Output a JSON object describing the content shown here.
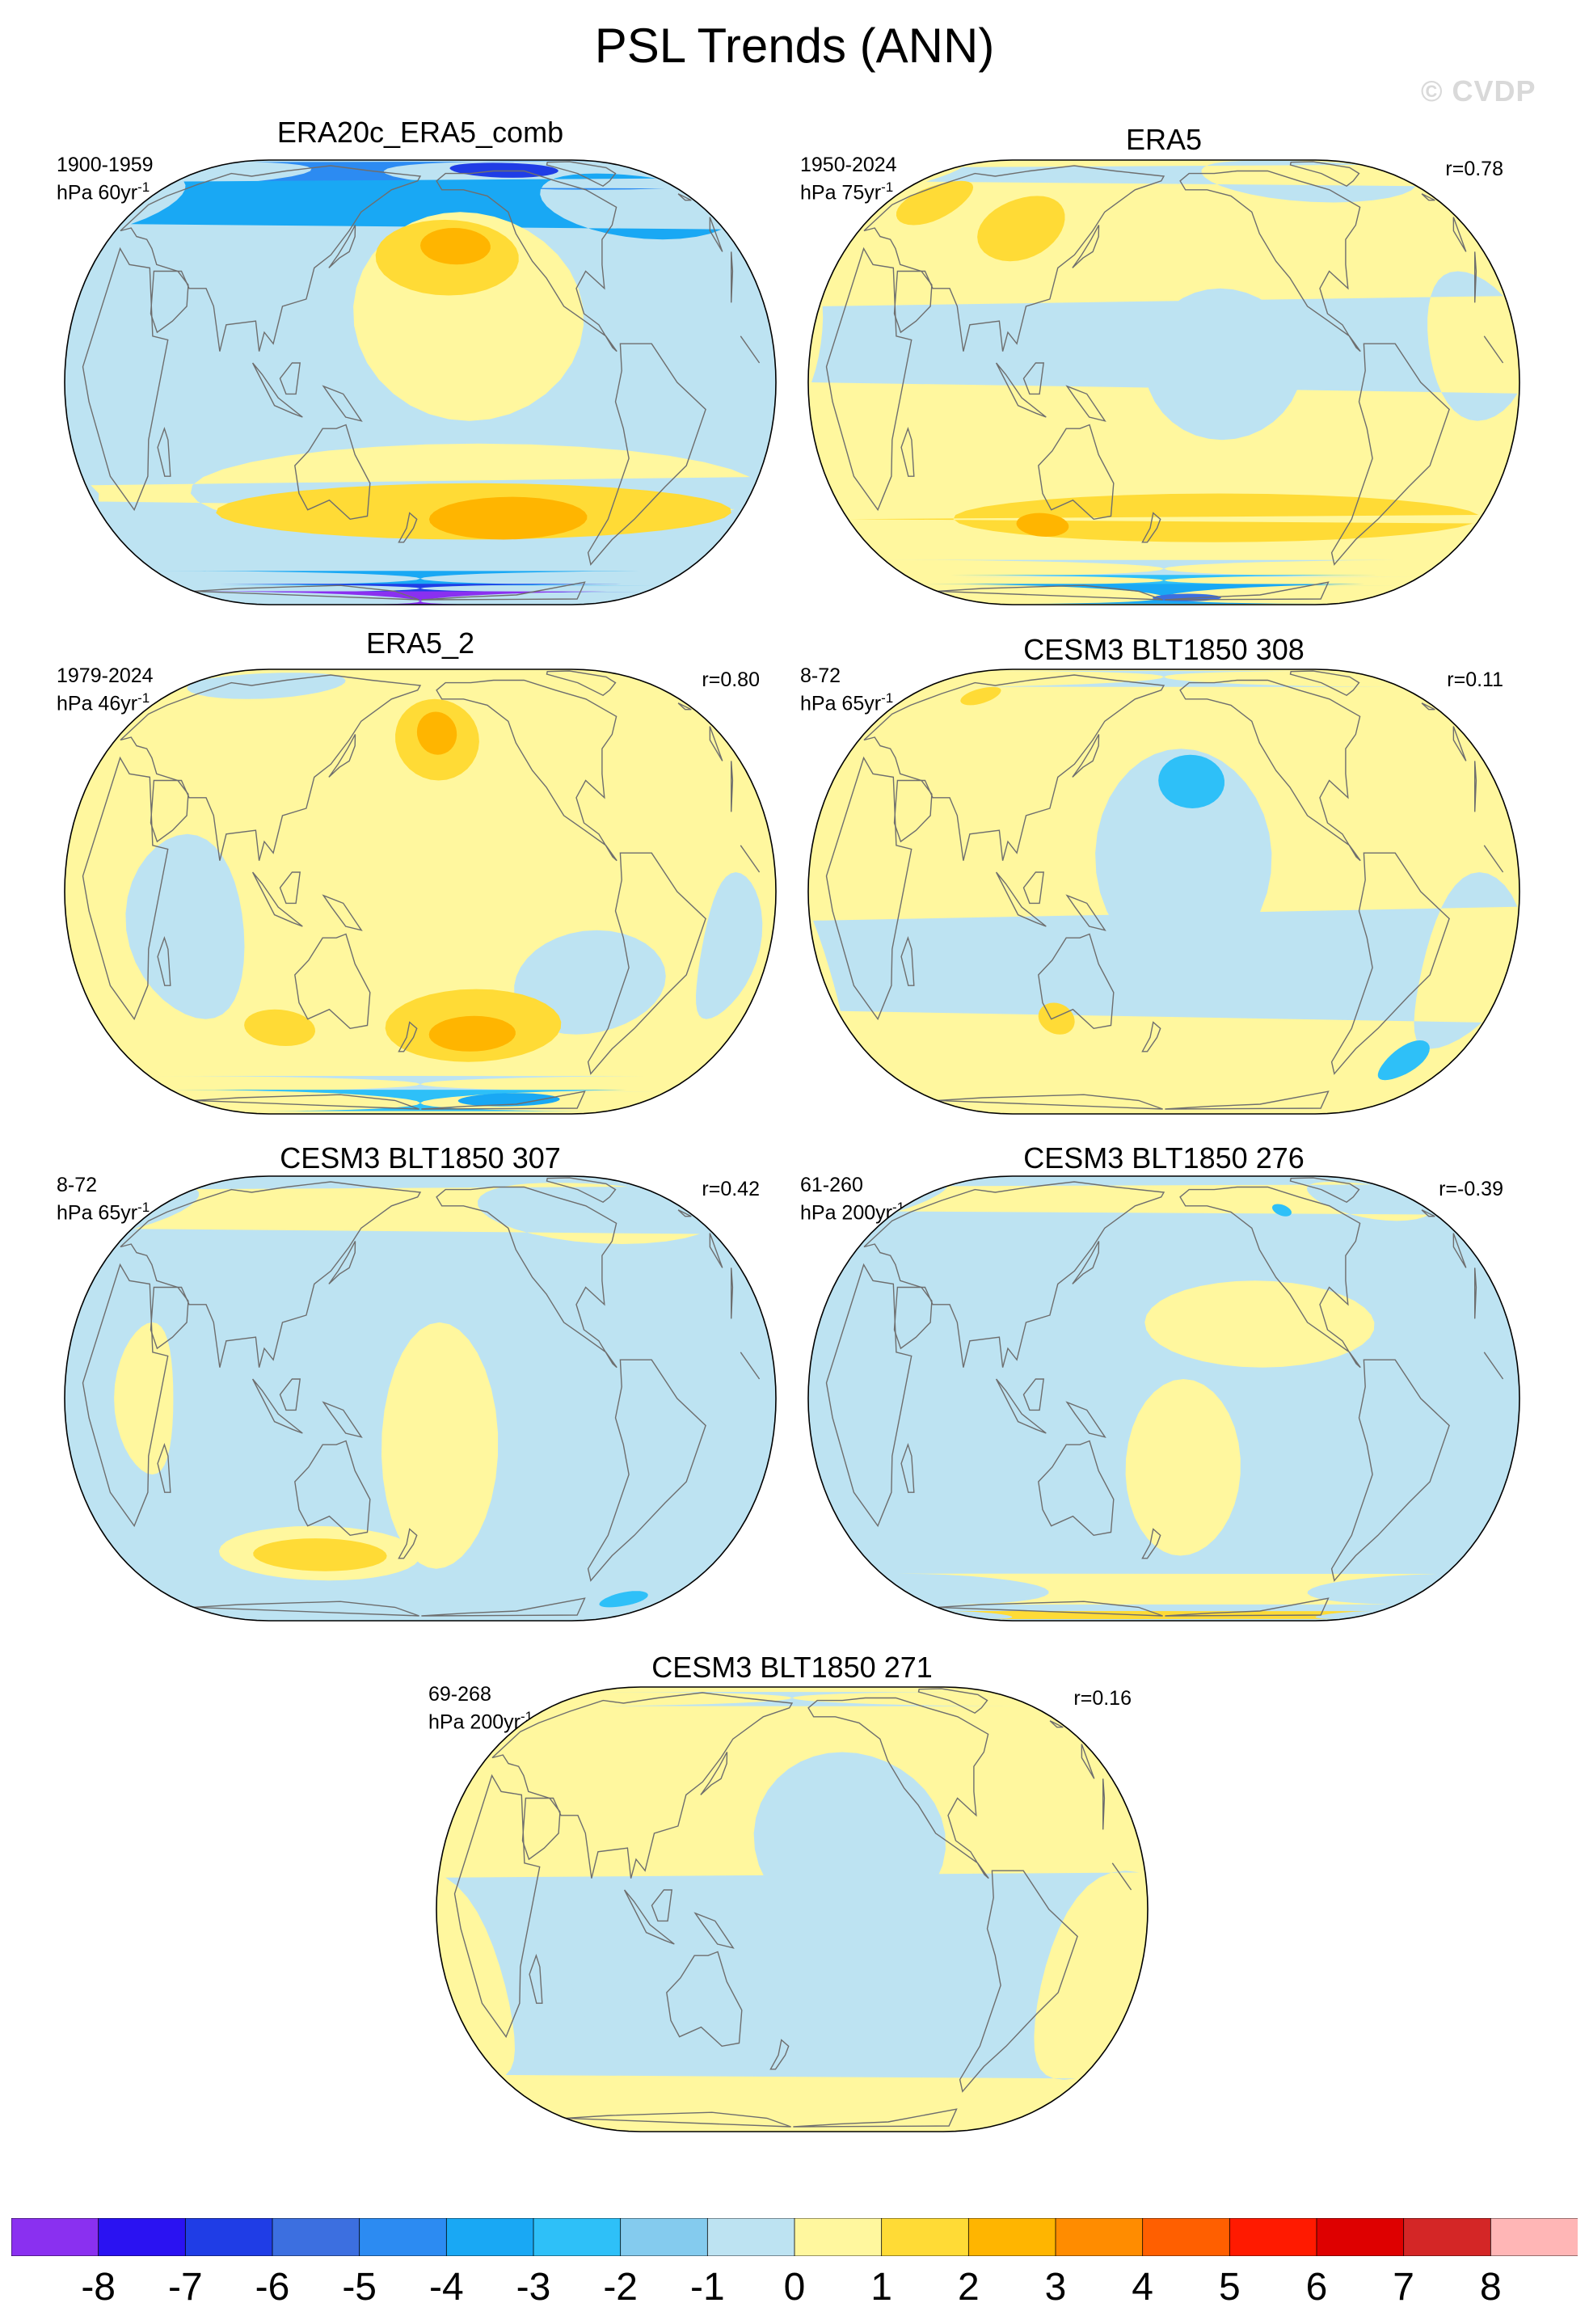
{
  "title": "PSL Trends (ANN)",
  "watermark": "© CVDP",
  "panels": [
    {
      "name": "ERA20c_ERA5_comb",
      "period": "1900-1959",
      "units_text": "hPa 60yr",
      "units_exp": "-1",
      "correlation": "",
      "background_level": "-1",
      "features": [
        {
          "level": "-4",
          "lon": -60,
          "lat": 72,
          "rlon": 150,
          "rlat": 12
        },
        {
          "level": "-6",
          "lon": -110,
          "lat": 74,
          "rlon": 45,
          "rlat": 7
        },
        {
          "level": "-3",
          "lon": -40,
          "lat": 55,
          "rlon": 60,
          "rlat": 15
        },
        {
          "level": "0",
          "lon": -155,
          "lat": 20,
          "rlon": 60,
          "rlat": 30
        },
        {
          "level": "1",
          "lon": -165,
          "lat": 35,
          "rlon": 40,
          "rlat": 12
        },
        {
          "level": "2",
          "lon": -160,
          "lat": 38,
          "rlon": 20,
          "rlat": 6
        },
        {
          "level": "0",
          "lon": -150,
          "lat": -30,
          "rlon": 155,
          "rlat": 14
        },
        {
          "level": "1",
          "lon": -150,
          "lat": -36,
          "rlon": 145,
          "rlat": 9
        },
        {
          "level": "2",
          "lon": -130,
          "lat": -38,
          "rlon": 45,
          "rlat": 7
        },
        {
          "level": "-3",
          "lon": 0,
          "lat": -62,
          "rlon": 180,
          "rlat": 4
        },
        {
          "level": "-6",
          "lon": 0,
          "lat": -68,
          "rlon": 180,
          "rlat": 3
        },
        {
          "level": "-8",
          "lon": 0,
          "lat": -80,
          "rlon": 180,
          "rlat": 10
        }
      ]
    },
    {
      "name": "ERA5",
      "period": "1950-2024",
      "units_text": "hPa 75yr",
      "units_exp": "-1",
      "correlation": "r=0.78",
      "background_level": "0",
      "features": [
        {
          "level": "-1",
          "lon": -70,
          "lat": 70,
          "rlon": 80,
          "rlat": 16
        },
        {
          "level": "-1",
          "lon": -20,
          "lat": 10,
          "rlon": 25,
          "rlat": 20
        },
        {
          "level": "-1",
          "lon": -150,
          "lat": 5,
          "rlon": 40,
          "rlat": 20
        },
        {
          "level": "1",
          "lon": 95,
          "lat": 45,
          "rlon": 25,
          "rlat": 12
        },
        {
          "level": "1",
          "lon": 30,
          "lat": 55,
          "rlon": 20,
          "rlat": 10
        },
        {
          "level": "1",
          "lon": -150,
          "lat": -38,
          "rlon": 150,
          "rlat": 8
        },
        {
          "level": "2",
          "lon": 110,
          "lat": -40,
          "rlon": 15,
          "rlat": 4
        },
        {
          "level": "-1",
          "lon": 0,
          "lat": -57,
          "rlon": 180,
          "rlat": 4
        },
        {
          "level": "-2",
          "lon": 0,
          "lat": -63,
          "rlon": 180,
          "rlat": 3
        },
        {
          "level": "-3",
          "lon": 0,
          "lat": -75,
          "rlon": 180,
          "rlat": 10
        },
        {
          "level": "-5",
          "lon": -160,
          "lat": -76,
          "rlon": 30,
          "rlat": 4
        }
      ]
    },
    {
      "name": "ERA5_2",
      "period": "1979-2024",
      "units_text": "hPa 46yr",
      "units_exp": "-1",
      "correlation": "r=0.80",
      "background_level": "0",
      "features": [
        {
          "level": "-1",
          "lon": 60,
          "lat": 70,
          "rlon": 60,
          "rlat": 10
        },
        {
          "level": "-1",
          "lon": 60,
          "lat": -10,
          "rlon": 30,
          "rlat": 25
        },
        {
          "level": "-1",
          "lon": -20,
          "lat": -15,
          "rlon": 15,
          "rlat": 20
        },
        {
          "level": "-1",
          "lon": -90,
          "lat": -25,
          "rlon": 40,
          "rlat": 15
        },
        {
          "level": "1",
          "lon": -170,
          "lat": 45,
          "rlon": 25,
          "rlat": 15
        },
        {
          "level": "2",
          "lon": -170,
          "lat": 46,
          "rlon": 12,
          "rlat": 8
        },
        {
          "level": "1",
          "lon": -150,
          "lat": -38,
          "rlon": 50,
          "rlat": 12
        },
        {
          "level": "2",
          "lon": -150,
          "lat": -40,
          "rlon": 25,
          "rlat": 6
        },
        {
          "level": "1",
          "lon": 100,
          "lat": -38,
          "rlon": 20,
          "rlat": 6
        },
        {
          "level": "-1",
          "lon": 0,
          "lat": -60,
          "rlon": 180,
          "rlat": 4
        },
        {
          "level": "-2",
          "lon": 0,
          "lat": -72,
          "rlon": 180,
          "rlat": 9
        },
        {
          "level": "-3",
          "lon": -110,
          "lat": -70,
          "rlon": 40,
          "rlat": 5
        }
      ]
    },
    {
      "name": "CESM3 BLT1850 308",
      "period": "8-72",
      "units_text": "hPa 65yr",
      "units_exp": "-1",
      "correlation": "r=0.11",
      "background_level": "0",
      "features": [
        {
          "level": "-1",
          "lon": -170,
          "lat": 10,
          "rlon": 45,
          "rlat": 30
        },
        {
          "level": "-2",
          "lon": -165,
          "lat": 30,
          "rlon": 18,
          "rlat": 8
        },
        {
          "level": "-1",
          "lon": -20,
          "lat": -20,
          "rlon": 25,
          "rlat": 25
        },
        {
          "level": "-1",
          "lon": 0,
          "lat": 75,
          "rlon": 180,
          "rlat": 8
        },
        {
          "level": "-2",
          "lon": -30,
          "lat": -50,
          "rlon": 12,
          "rlat": 8
        },
        {
          "level": "1",
          "lon": 120,
          "lat": -35,
          "rlon": 10,
          "rlat": 5
        },
        {
          "level": "1",
          "lon": 50,
          "lat": 62,
          "rlon": 12,
          "rlat": 5
        }
      ]
    },
    {
      "name": "CESM3 BLT1850 307",
      "period": "8-72",
      "units_text": "hPa 65yr",
      "units_exp": "-1",
      "correlation": "r=0.42",
      "background_level": "-1",
      "features": [
        {
          "level": "0",
          "lon": -60,
          "lat": 60,
          "rlon": 80,
          "rlat": 16
        },
        {
          "level": "0",
          "lon": -170,
          "lat": -15,
          "rlon": 30,
          "rlat": 35
        },
        {
          "level": "0",
          "lon": 120,
          "lat": -45,
          "rlon": 60,
          "rlat": 10
        },
        {
          "level": "1",
          "lon": 120,
          "lat": -45,
          "rlon": 40,
          "rlat": 6
        },
        {
          "level": "0",
          "lon": 40,
          "lat": 0,
          "rlon": 15,
          "rlat": 20
        },
        {
          "level": "-2",
          "lon": -30,
          "lat": -65,
          "rlon": 15,
          "rlat": 5
        }
      ]
    },
    {
      "name": "CESM3 BLT1850 276",
      "period": "61-260",
      "units_text": "hPa 200yr",
      "units_exp": "-1",
      "correlation": "r=-0.39",
      "background_level": "-1",
      "features": [
        {
          "level": "0",
          "lon": -130,
          "lat": 20,
          "rlon": 60,
          "rlat": 12
        },
        {
          "level": "0",
          "lon": -170,
          "lat": -20,
          "rlon": 30,
          "rlat": 25
        },
        {
          "level": "0",
          "lon": -30,
          "lat": 65,
          "rlon": 40,
          "rlat": 12
        },
        {
          "level": "0",
          "lon": 10,
          "lat": -60,
          "rlon": 90,
          "rlat": 8
        },
        {
          "level": "1",
          "lon": 0,
          "lat": -78,
          "rlon": 40,
          "rlat": 5
        },
        {
          "level": "-2",
          "lon": -100,
          "lat": 58,
          "rlon": 6,
          "rlat": 3
        }
      ]
    },
    {
      "name": "CESM3 BLT1850 271",
      "period": "69-268",
      "units_text": "hPa 200yr",
      "units_exp": "-1",
      "correlation": "r=0.16",
      "background_level": "0",
      "features": [
        {
          "level": "-1",
          "lon": -150,
          "lat": 20,
          "rlon": 50,
          "rlat": 25
        },
        {
          "level": "-1",
          "lon": -10,
          "lat": -20,
          "rlon": 40,
          "rlat": 30
        },
        {
          "level": "-1",
          "lon": 80,
          "lat": -20,
          "rlon": 15,
          "rlat": 15
        },
        {
          "level": "-1",
          "lon": 0,
          "lat": 72,
          "rlon": 180,
          "rlat": 6
        }
      ]
    }
  ],
  "colorbar": {
    "levels": [
      "-8",
      "-7",
      "-6",
      "-5",
      "-4",
      "-3",
      "-2",
      "-1",
      "0",
      "1",
      "2",
      "3",
      "4",
      "5",
      "6",
      "7",
      "8"
    ],
    "tick_labels": [
      "-8",
      "-7",
      "-6",
      "-5",
      "-4",
      "-3",
      "-2",
      "-1",
      "0",
      "1",
      "2",
      "3",
      "4",
      "5",
      "6",
      "7",
      "8"
    ],
    "colors": [
      "#8A30F0",
      "#2A12F2",
      "#1F3DE6",
      "#3C6FE0",
      "#2C8BF2",
      "#19A8F4",
      "#2EC0F8",
      "#84CBEE",
      "#BDE3F2",
      "#FFF79E",
      "#FFDB36",
      "#FFB500",
      "#FF8C00",
      "#FF5F00",
      "#FF1A00",
      "#DE0000",
      "#D42626",
      "#FFB6B6"
    ]
  },
  "level_colors": {
    "-8": "#8A30F0",
    "-7": "#2A12F2",
    "-6": "#1F3DE6",
    "-5": "#3C6FE0",
    "-4": "#2C8BF2",
    "-3": "#19A8F4",
    "-2": "#2EC0F8",
    "-1": "#BDE3F2",
    "0": "#FFF79E",
    "1": "#FFDB36",
    "2": "#FFB500",
    "3": "#FF8C00",
    "4": "#FF5F00",
    "5": "#FF1A00",
    "6": "#DE0000",
    "7": "#D42626",
    "8": "#FFB6B6"
  },
  "land_line_color": "#6e6e6e"
}
